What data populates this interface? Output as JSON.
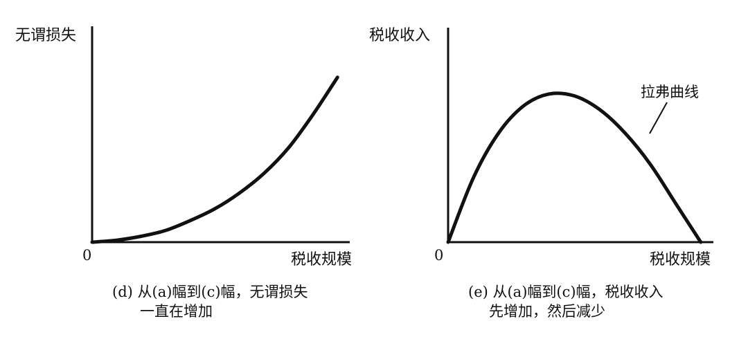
{
  "chart_data": [
    {
      "type": "line",
      "panel": "d",
      "ylabel": "无谓损失",
      "xlabel": "税收规模",
      "origin_label": "0",
      "caption": [
        "(d) 从(a)幅到(c)幅，无谓损失",
        "一直在增加"
      ],
      "x": [
        0,
        0.1,
        0.2,
        0.3,
        0.4,
        0.5,
        0.6,
        0.7,
        0.8,
        0.9,
        1.0
      ],
      "y": [
        0,
        0.01,
        0.03,
        0.06,
        0.11,
        0.17,
        0.25,
        0.35,
        0.48,
        0.65,
        0.84
      ],
      "xlim": [
        0,
        1.05
      ],
      "ylim": [
        0,
        1.1
      ],
      "grid": false,
      "line_color": "#111111"
    },
    {
      "type": "line",
      "panel": "e",
      "ylabel": "税收收入",
      "xlabel": "税收规模",
      "origin_label": "0",
      "caption": [
        "(e) 从(a)幅到(c)幅，税收收入",
        "先增加，然后减少"
      ],
      "annotation": "拉弗曲线",
      "x": [
        0,
        0.1,
        0.2,
        0.3,
        0.4,
        0.5,
        0.6,
        0.7,
        0.8,
        0.9,
        1.0
      ],
      "y": [
        0,
        0.33,
        0.56,
        0.7,
        0.76,
        0.75,
        0.68,
        0.56,
        0.4,
        0.2,
        0
      ],
      "xlim": [
        0,
        1.05
      ],
      "ylim": [
        0,
        1.1
      ],
      "grid": false,
      "line_color": "#111111"
    }
  ]
}
